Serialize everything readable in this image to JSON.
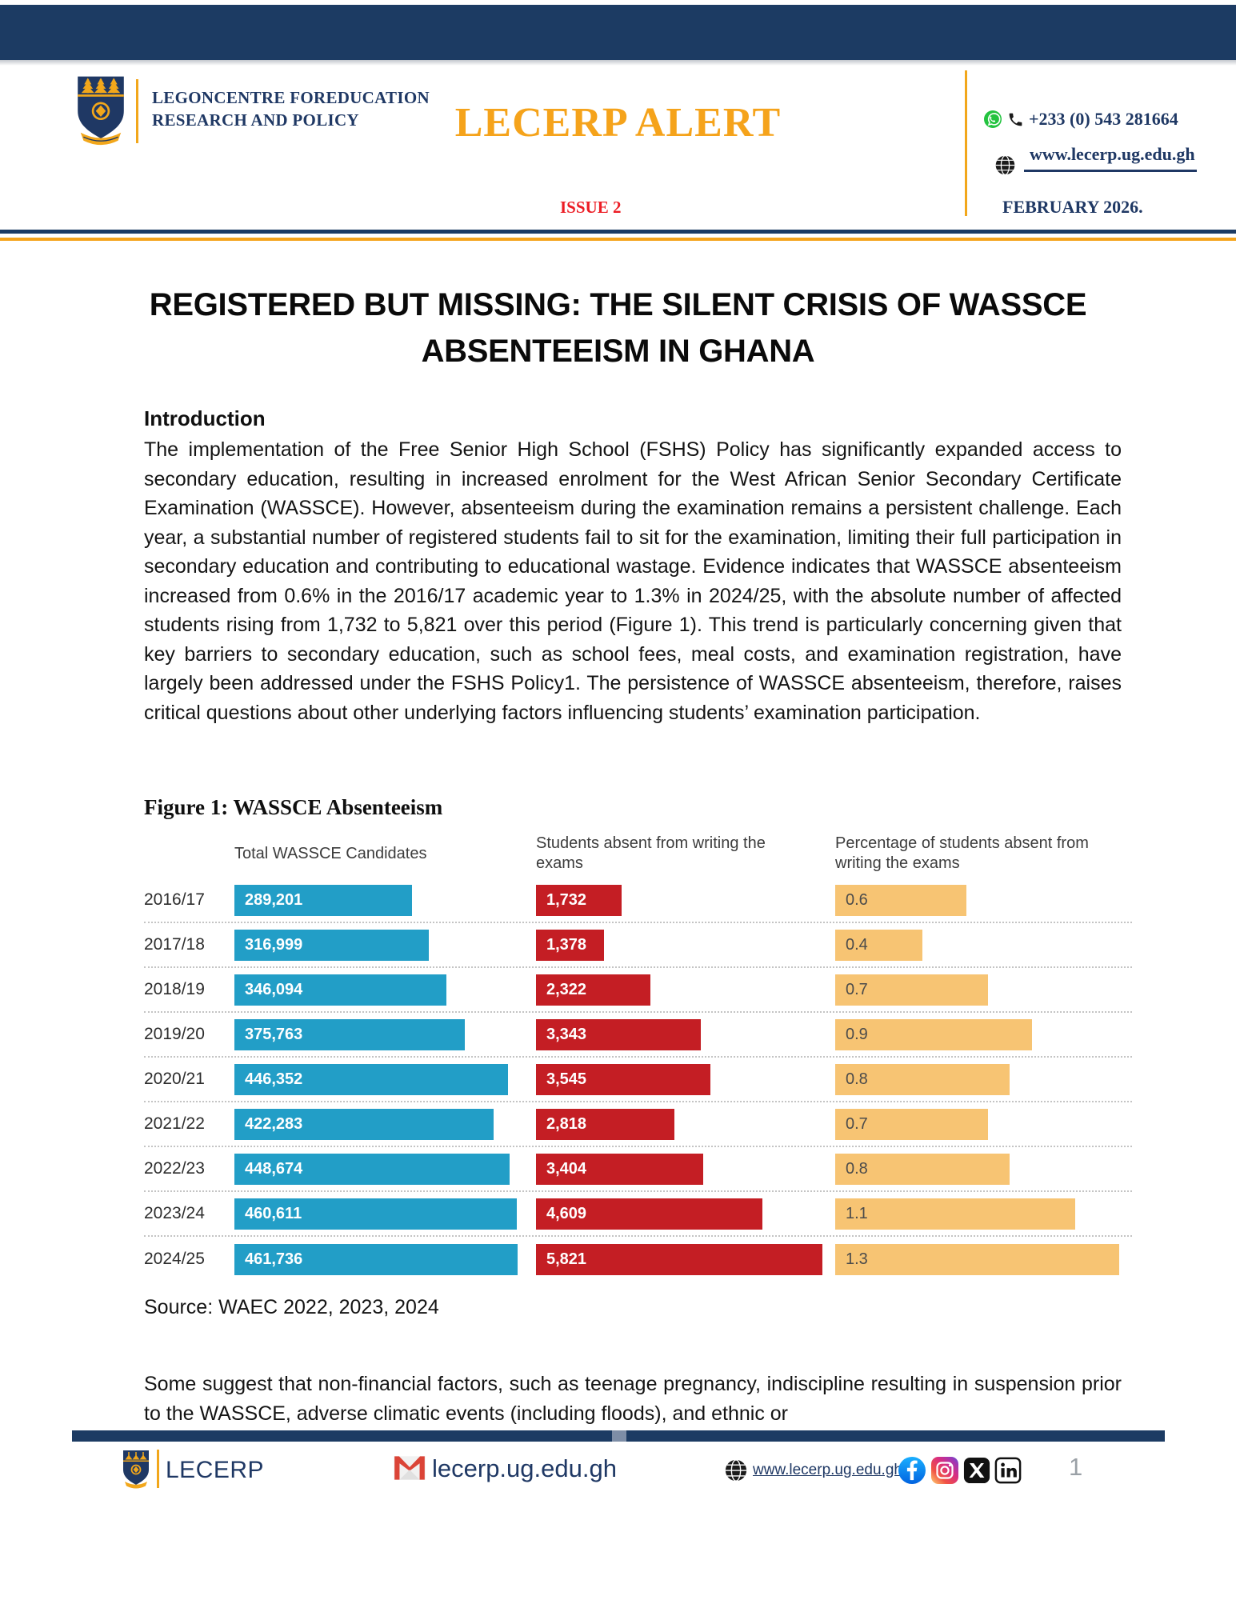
{
  "header": {
    "org_line1": "LEGONCENTRE FOREDUCATION",
    "org_line2": "RESEARCH AND POLICY",
    "masthead": "LECERP ALERT",
    "issue": "ISSUE 2",
    "phone": "+233 (0) 543 281664",
    "website": "www.lecerp.ug.edu.gh",
    "date": "FEBRUARY 2026."
  },
  "article": {
    "title_line1": "REGISTERED BUT MISSING: THE SILENT CRISIS OF WASSCE",
    "title_line2": "ABSENTEEISM IN GHANA",
    "intro_heading": "Introduction",
    "intro_text": "The implementation of the Free Senior High School (FSHS) Policy has significantly expanded access to secondary education, resulting in increased enrolment for the West African Senior Secondary Certificate Examination (WASSCE). However, absenteeism during the examination remains a persistent challenge. Each year, a substantial number of registered students fail to sit for the examination, limiting their full participation in secondary education and contributing to educational wastage. Evidence indicates that WASSCE absenteeism increased from 0.6% in the 2016/17 academic year to 1.3% in 2024/25, with the absolute number of affected students rising from 1,732 to 5,821 over this period (Figure 1). This trend is particularly concerning given that key barriers to secondary education, such as school fees, meal costs, and examination registration, have largely been addressed under the FSHS Policy1. The persistence of WASSCE absenteeism, therefore, raises critical questions about other underlying factors influencing students’ examination participation.",
    "figure_caption": "Figure 1: WASSCE Absenteeism",
    "source": "Source: WAEC 2022, 2023, 2024",
    "closing_text": "Some suggest that non-financial factors, such as teenage pregnancy, indiscipline resulting in suspension prior to the WASSCE, adverse climatic events (including floods), and ethnic or"
  },
  "chart_data": {
    "type": "bar",
    "orientation": "horizontal",
    "title": "Figure 1: WASSCE Absenteeism",
    "categories": [
      "2016/17",
      "2017/18",
      "2018/19",
      "2019/20",
      "2020/21",
      "2021/22",
      "2022/23",
      "2023/24",
      "2024/25"
    ],
    "series": [
      {
        "name": "Total WASSCE Candidates",
        "values": [
          289201,
          316999,
          346094,
          375763,
          446352,
          422283,
          448674,
          460611,
          461736
        ],
        "labels": [
          "289,201",
          "316,999",
          "346,094",
          "375,763",
          "446,352",
          "422,283",
          "448,674",
          "460,611",
          "461,736"
        ],
        "bar_color": "#229EC7",
        "label_color": "#FFFFFF"
      },
      {
        "name": "Students absent from writing the exams",
        "values": [
          1732,
          1378,
          2322,
          3343,
          3545,
          2818,
          3404,
          4609,
          5821
        ],
        "labels": [
          "1,732",
          "1,378",
          "2,322",
          "3,343",
          "3,545",
          "2,818",
          "3,404",
          "4,609",
          "5,821"
        ],
        "bar_color": "#C41E24",
        "label_color": "#FFFFFF"
      },
      {
        "name": "Percentage of students absent from writing the exams",
        "values": [
          0.6,
          0.4,
          0.7,
          0.9,
          0.8,
          0.7,
          0.8,
          1.1,
          1.3
        ],
        "labels": [
          "0.6",
          "0.4",
          "0.7",
          "0.9",
          "0.8",
          "0.7",
          "0.8",
          "1.1",
          "1.3"
        ],
        "bar_color": "#F7C473",
        "label_color": "#4B4B4B"
      }
    ],
    "layout": {
      "bars_normalized_per_column": true,
      "value_labels_inside_bars": true,
      "row_separators": "dotted",
      "legend": "none"
    }
  },
  "footer": {
    "brand": "LECERP",
    "email": "lecerp.ug.edu.gh",
    "website": "www.lecerp.ug.edu.gh",
    "page_number": "1",
    "social": [
      "facebook",
      "instagram",
      "x",
      "linkedin"
    ]
  },
  "colors": {
    "navy": "#1C3B63",
    "serif_navy": "#1F3864",
    "orange": "#F5A31B",
    "gold": "#F2A71B",
    "red_accent": "#EC1C24",
    "bar_blue": "#229EC7",
    "bar_red": "#C41E24",
    "bar_orange": "#F7C473"
  }
}
